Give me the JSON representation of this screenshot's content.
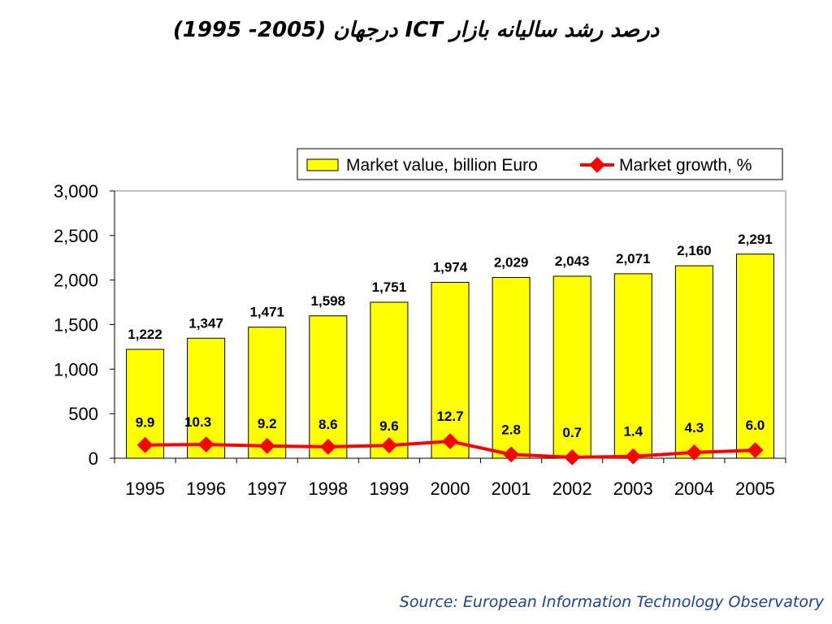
{
  "title": "درصد رشد سالیانه بازار ICT درجهان (2005- 1995)",
  "source": "Source: European Information Technology Observatory",
  "colors": {
    "bar_fill": "#ffff00",
    "bar_stroke": "#000000",
    "line": "#ff0000",
    "source_text": "#1f3f9a"
  },
  "chart_data": {
    "type": "bar",
    "categories": [
      "1995",
      "1996",
      "1997",
      "1998",
      "1999",
      "2000",
      "2001",
      "2002",
      "2003",
      "2004",
      "2005"
    ],
    "series": [
      {
        "name": "Market value, billion Euro",
        "type": "bar",
        "values": [
          1222,
          1347,
          1471,
          1598,
          1751,
          1974,
          2029,
          2043,
          2071,
          2160,
          2291
        ],
        "labels": [
          "1,222",
          "1,347",
          "1,471",
          "1,598",
          "1,751",
          "1,974",
          "2,029",
          "2,043",
          "2,071",
          "2,160",
          "2,291"
        ]
      },
      {
        "name": "Market growth, %",
        "type": "line",
        "values": [
          9.9,
          10.3,
          9.2,
          8.6,
          9.6,
          12.7,
          2.8,
          0.7,
          1.4,
          4.3,
          6.0
        ],
        "labels": [
          "9.9",
          "10.3",
          "9.2",
          "8.6",
          "9.6",
          "12.7",
          "2.8",
          "0.7",
          "1.4",
          "4.3",
          "6.0"
        ],
        "plotted_on": "left_axis_scaled_x15"
      }
    ],
    "ylim": [
      0,
      3000
    ],
    "yticks": [
      0,
      500,
      1000,
      1500,
      2000,
      2500,
      3000
    ],
    "ytick_labels": [
      "0",
      "500",
      "1,000",
      "1,500",
      "2,000",
      "2,500",
      "3,000"
    ],
    "xlabel": "",
    "ylabel": "",
    "grid": false,
    "legend_position": "top-right"
  }
}
